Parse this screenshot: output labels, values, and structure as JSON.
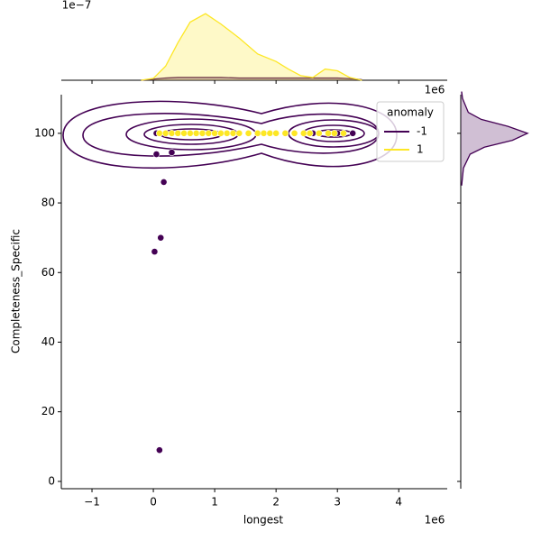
{
  "chart_data": {
    "type": "scatter",
    "x_label": "longest",
    "y_label": "Completeness_Specific",
    "x_offset_label": "1e6",
    "xlim": [
      -1.5,
      4.79
    ],
    "ylim": [
      -2.1,
      111.1
    ],
    "xticks": [
      {
        "value": -1,
        "label": "−1"
      },
      0,
      1,
      2,
      3,
      4
    ],
    "yticks": [
      0,
      20,
      40,
      60,
      80,
      100
    ],
    "legend_title": "anomaly",
    "legend": "upper right",
    "series": [
      {
        "name": "-1",
        "color": "#440154",
        "x": [
          0.05,
          0.05,
          0.3,
          0.17,
          0.12,
          0.02,
          0.1,
          2.6,
          3.0,
          3.25
        ],
        "values": [
          100,
          94,
          94.5,
          86,
          70,
          66,
          9,
          100,
          100,
          100
        ]
      },
      {
        "name": "1",
        "color": "#fde725",
        "x": [
          0.1,
          0.2,
          0.3,
          0.4,
          0.5,
          0.6,
          0.7,
          0.8,
          0.9,
          1.0,
          1.1,
          1.2,
          1.3,
          1.4,
          1.55,
          1.7,
          1.8,
          1.9,
          2.0,
          2.15,
          2.3,
          2.45,
          2.55,
          2.7,
          2.85,
          2.95,
          3.1
        ],
        "values": [
          100,
          100,
          100,
          100,
          100,
          100,
          100,
          100,
          100,
          100,
          100,
          100,
          100,
          100,
          100,
          100,
          100,
          100,
          100,
          100,
          100,
          100,
          100,
          100,
          100,
          100,
          100
        ]
      }
    ],
    "marginal_x": {
      "x_offset_label": "1e6",
      "y_offset_label": "1e−7",
      "ylim": [
        0,
        6.5
      ],
      "x": [
        -0.2,
        0,
        0.2,
        0.4,
        0.6,
        0.85,
        1.1,
        1.4,
        1.7,
        2.0,
        2.2,
        2.4,
        2.6,
        2.8,
        3.0,
        3.2,
        3.4
      ],
      "series": [
        {
          "name": "-1",
          "color": "#440154",
          "values": [
            0,
            0.1,
            0.2,
            0.25,
            0.25,
            0.25,
            0.25,
            0.2,
            0.2,
            0.2,
            0.2,
            0.2,
            0.2,
            0.2,
            0.2,
            0.15,
            0.05
          ]
        },
        {
          "name": "1",
          "color": "#fde725",
          "values": [
            0,
            0.17,
            1.27,
            3.38,
            5.24,
            6.0,
            5.07,
            3.8,
            2.37,
            1.69,
            1.01,
            0.42,
            0.25,
            1.01,
            0.85,
            0.25,
            0
          ]
        }
      ]
    },
    "marginal_y": {
      "xlim": [
        0,
        0.16
      ],
      "y": [
        85,
        90,
        94,
        96,
        98,
        100,
        102,
        104,
        106,
        110,
        112
      ],
      "series": [
        {
          "name": "-1",
          "color": "#440154",
          "values": [
            0.002,
            0.006,
            0.021,
            0.053,
            0.116,
            0.15,
            0.106,
            0.046,
            0.017,
            0.004,
            0.002
          ]
        }
      ]
    }
  }
}
